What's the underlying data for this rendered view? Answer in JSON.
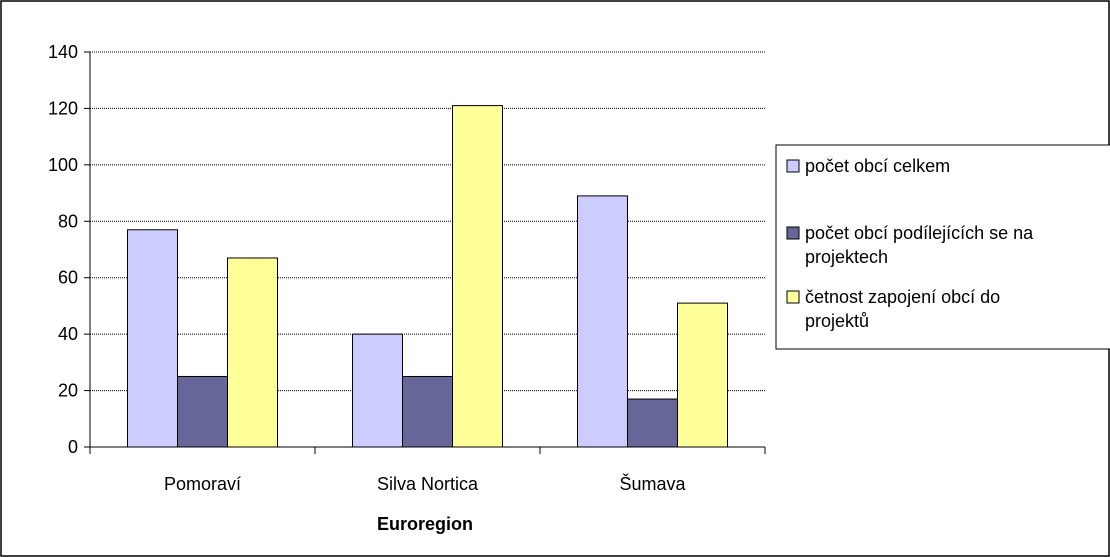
{
  "chart_data": {
    "type": "bar",
    "categories": [
      "Pomoraví",
      "Silva Nortica",
      "Šumava"
    ],
    "series": [
      {
        "name": "počet obcí celkem",
        "values": [
          77,
          40,
          89
        ],
        "color": "#ccccff"
      },
      {
        "name": "počet obcí podílejících se na projektech",
        "values": [
          25,
          25,
          17
        ],
        "color": "#666699"
      },
      {
        "name": "četnost zapojení obcí do projektů",
        "values": [
          67,
          121,
          51
        ],
        "color": "#ffff99"
      }
    ],
    "xlabel": "Euroregion",
    "ylabel": "",
    "ylim": [
      0,
      140
    ],
    "yticks": [
      0,
      20,
      40,
      60,
      80,
      100,
      120,
      140
    ],
    "grid": true,
    "legend_position": "right",
    "legend_lines": [
      [
        "počet obcí celkem"
      ],
      [
        "počet obcí podílejících se na",
        "projektech"
      ],
      [
        "četnost zapojení obcí do",
        "projektů"
      ]
    ]
  }
}
